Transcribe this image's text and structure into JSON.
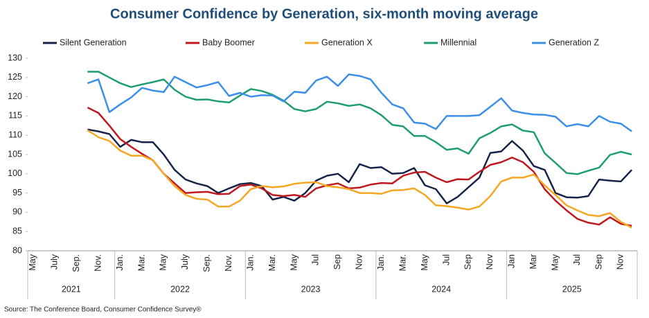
{
  "chart_data": {
    "type": "line",
    "title": "Consumer Confidence by Generation, six-month moving average",
    "source": "Source: The Conference Board, Consumer Confidence Survey®",
    "categories": [
      "May",
      null,
      "July",
      null,
      "Sep.",
      null,
      "Nov.",
      null,
      "Jan.",
      null,
      "Mar.",
      null,
      "May",
      null,
      "July",
      null,
      "Sep.",
      null,
      "Nov.",
      null,
      "Jan.",
      null,
      "Mar.",
      null,
      "May",
      null,
      "Jul",
      null,
      "Sep",
      null,
      "Nov",
      null,
      "Jan.",
      null,
      "Mar.",
      null,
      "May",
      null,
      "Jul",
      null,
      "Sep",
      null,
      "Nov",
      null,
      "Jan",
      null,
      "Mar",
      null,
      "May",
      null,
      "Jul",
      null,
      "Sep",
      null,
      "Nov",
      null
    ],
    "year_labels": [
      "2021",
      "2022",
      "2023",
      "2024",
      "2025"
    ],
    "ylim": [
      80,
      130
    ],
    "yticks": [
      80,
      85,
      90,
      95,
      100,
      105,
      110,
      115,
      120,
      125,
      130
    ],
    "series": [
      {
        "name": "Silent Generation",
        "color": "#17244a",
        "values": [
          null,
          null,
          null,
          null,
          null,
          111.5,
          111,
          110.3,
          107,
          108.8,
          108.2,
          108.2,
          105,
          101,
          98.5,
          97.5,
          96.8,
          95,
          96.2,
          97.3,
          97.6,
          96.8,
          93.3,
          94,
          93,
          95,
          98.2,
          99.5,
          100,
          97.8,
          102.5,
          101.5,
          101.7,
          100,
          100.2,
          101.5,
          97,
          96,
          92.3,
          94,
          96.5,
          99,
          105.4,
          105.8,
          108.5,
          106,
          102,
          101,
          95,
          93.9,
          93.8,
          94.2,
          98.5,
          98.2,
          98,
          101
        ]
      },
      {
        "name": "Baby Boomer",
        "color": "#c0181f",
        "values": [
          null,
          null,
          null,
          null,
          null,
          117.2,
          115.8,
          112.5,
          109,
          107,
          105.2,
          103.5,
          100,
          97.5,
          95,
          95.2,
          95.3,
          94.7,
          94.8,
          96.8,
          97.2,
          96.2,
          94.5,
          94.2,
          94.5,
          94,
          96.2,
          97,
          97.5,
          96.2,
          96.4,
          97.2,
          97.6,
          97.5,
          99.5,
          100.3,
          100.5,
          99,
          97.8,
          98.6,
          98.5,
          100.5,
          102.3,
          103,
          104.2,
          103,
          100.5,
          96,
          93,
          90.5,
          88.3,
          87.3,
          86.8,
          88.7,
          87,
          86.5
        ]
      },
      {
        "name": "Generation X",
        "color": "#f5a623",
        "values": [
          null,
          null,
          null,
          null,
          null,
          111.3,
          109.5,
          108.5,
          106,
          104.7,
          104.7,
          103.5,
          100,
          96.8,
          94.5,
          93.5,
          93.3,
          91.5,
          91.5,
          93,
          96,
          96.8,
          96.5,
          96.7,
          97.4,
          97.7,
          97.8,
          96.8,
          96.5,
          96,
          95,
          95,
          94.8,
          95.7,
          95.8,
          96.2,
          94.5,
          91.8,
          91.6,
          91.2,
          90.7,
          91.5,
          94.2,
          98,
          99,
          99,
          99.8,
          97,
          94.5,
          91.8,
          90.5,
          89.3,
          89,
          89.8,
          87.5,
          86
        ]
      },
      {
        "name": "Millennial",
        "color": "#1e9e6e",
        "values": [
          null,
          null,
          null,
          null,
          null,
          126.5,
          126.5,
          125,
          123.5,
          122.5,
          123.2,
          123.8,
          124.5,
          121.8,
          120,
          119.2,
          119.3,
          118.8,
          118.5,
          120.3,
          122,
          121.5,
          120.5,
          119,
          116.8,
          116.2,
          116.8,
          118.7,
          118.3,
          117.6,
          118,
          117,
          115.2,
          112.7,
          112.3,
          109.8,
          109.8,
          108.2,
          106.2,
          106.6,
          105.2,
          109.2,
          110.6,
          112.3,
          112.8,
          111.2,
          110.8,
          105.3,
          102.8,
          100.2,
          99.9,
          100.8,
          101.6,
          104.9,
          105.7,
          105
        ]
      },
      {
        "name": "Generation Z",
        "color": "#3b8fe8",
        "values": [
          null,
          null,
          null,
          null,
          null,
          123.5,
          124.5,
          116,
          118,
          119.8,
          122.3,
          121.6,
          121.2,
          125.2,
          123.8,
          122.4,
          123,
          123.8,
          120.2,
          121,
          120,
          120.4,
          120.3,
          118.8,
          121.3,
          121,
          124.2,
          125.2,
          122.8,
          125.8,
          125.4,
          124.5,
          121,
          118,
          117,
          113.3,
          113,
          111.6,
          115,
          115,
          115,
          115.2,
          117.4,
          119.6,
          116.4,
          115.8,
          115.4,
          115.3,
          114.8,
          112.3,
          112.9,
          112.3,
          115,
          113.5,
          113,
          111
        ]
      }
    ]
  }
}
